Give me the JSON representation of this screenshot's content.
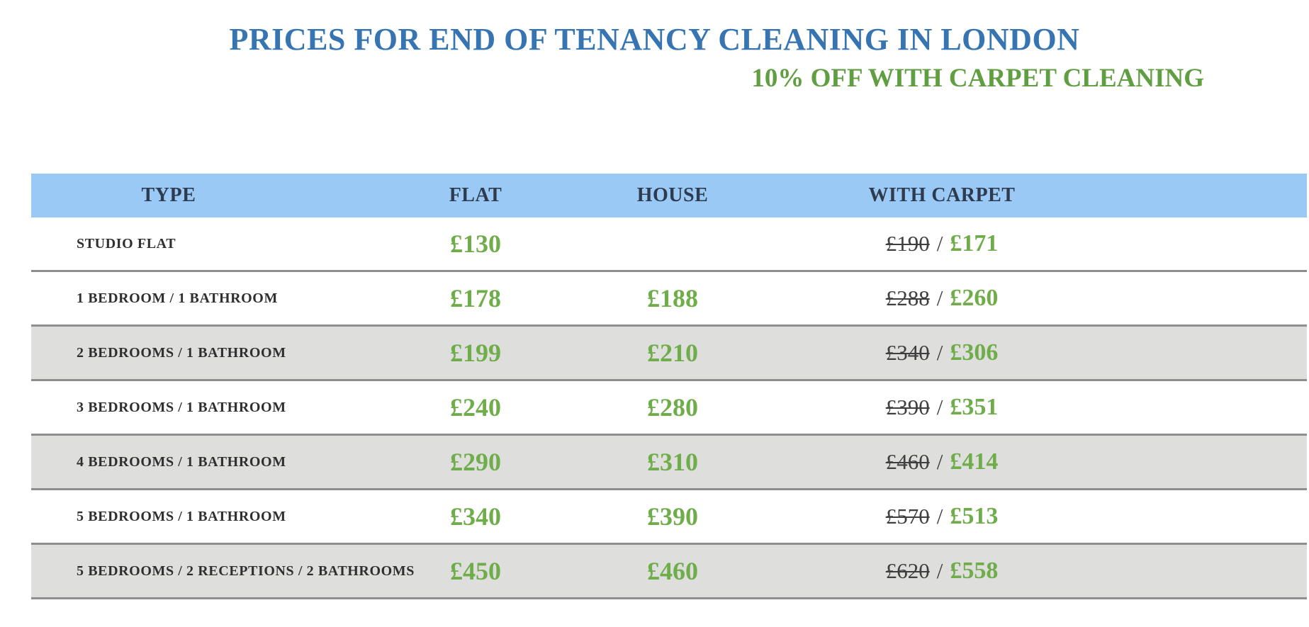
{
  "header": {
    "title": "PRICES FOR END OF TENANCY CLEANING IN LONDON",
    "subtitle": "10% OFF WITH CARPET CLEANING"
  },
  "table": {
    "columns": [
      "TYPE",
      "FLAT",
      "HOUSE",
      "WITH CARPET"
    ],
    "carpet_separator": "/",
    "rows": [
      {
        "type": "STUDIO FLAT",
        "flat": "£130",
        "house": "",
        "carpet_old": "£190",
        "carpet_new": "£171",
        "shaded": false
      },
      {
        "type": "1 BEDROOM / 1 BATHROOM",
        "flat": "£178",
        "house": "£188",
        "carpet_old": "£288",
        "carpet_new": "£260",
        "shaded": false
      },
      {
        "type": "2 BEDROOMS / 1 BATHROOM",
        "flat": "£199",
        "house": "£210",
        "carpet_old": "£340",
        "carpet_new": "£306",
        "shaded": true
      },
      {
        "type": "3 BEDROOMS / 1 BATHROOM",
        "flat": "£240",
        "house": "£280",
        "carpet_old": "£390",
        "carpet_new": "£351",
        "shaded": false
      },
      {
        "type": "4 BEDROOMS / 1 BATHROOM",
        "flat": "£290",
        "house": "£310",
        "carpet_old": "£460",
        "carpet_new": "£414",
        "shaded": true
      },
      {
        "type": "5 BEDROOMS / 1 BATHROOM",
        "flat": "£340",
        "house": "£390",
        "carpet_old": "£570",
        "carpet_new": "£513",
        "shaded": false
      },
      {
        "type": "5 BEDROOMS / 2 RECEPTIONS / 2 BATHROOMS",
        "flat": "£450",
        "house": "£460",
        "carpet_old": "£620",
        "carpet_new": "£558",
        "shaded": true
      }
    ]
  },
  "colors": {
    "title-blue": "#3674B2",
    "subtitle-green": "#5F9E41",
    "price-green": "#6FAD4B",
    "old-price": "#3F3F3F",
    "header-bg": "#9AC9F6",
    "header-text": "#2E3B4E",
    "label-text": "#2F2F2F",
    "shaded-row": "#DEDEDD",
    "row-border": "#8E8E8E"
  }
}
